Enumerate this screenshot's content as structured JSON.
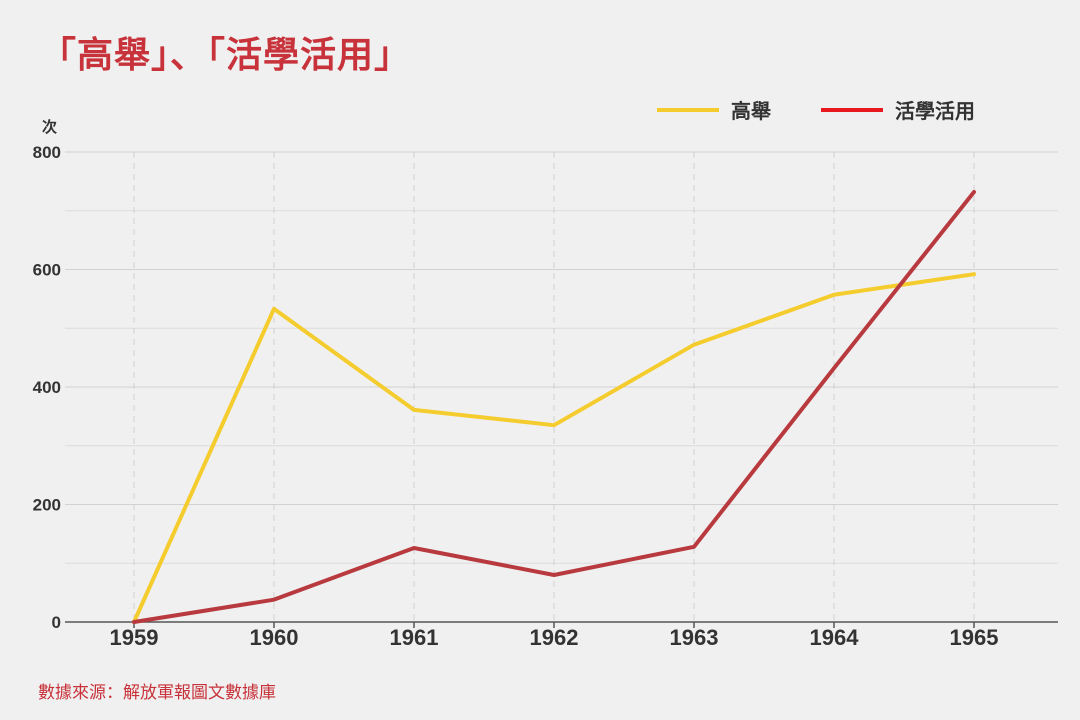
{
  "title": "「高舉」、「活學活用」",
  "source": "數據來源：解放軍報圖文數據庫",
  "chart_data": {
    "type": "line",
    "title": "「高舉」、「活學活用」",
    "ylabel": "次",
    "xlabel": "",
    "x": [
      "1959",
      "1960",
      "1961",
      "1962",
      "1963",
      "1964",
      "1965"
    ],
    "y_ticks": [
      "0",
      "200",
      "400",
      "600",
      "800"
    ],
    "ylim": [
      0,
      800
    ],
    "grid": true,
    "legend_position": "top-right",
    "series": [
      {
        "name": "高舉",
        "color": "#f5cc2e",
        "legend_color": "#f5cc2e",
        "values": [
          0,
          533,
          361,
          335,
          472,
          557,
          592
        ]
      },
      {
        "name": "活學活用",
        "color": "#b83a3f",
        "legend_color": "#e8191e",
        "values": [
          0,
          38,
          126,
          80,
          128,
          432,
          732
        ]
      }
    ]
  }
}
